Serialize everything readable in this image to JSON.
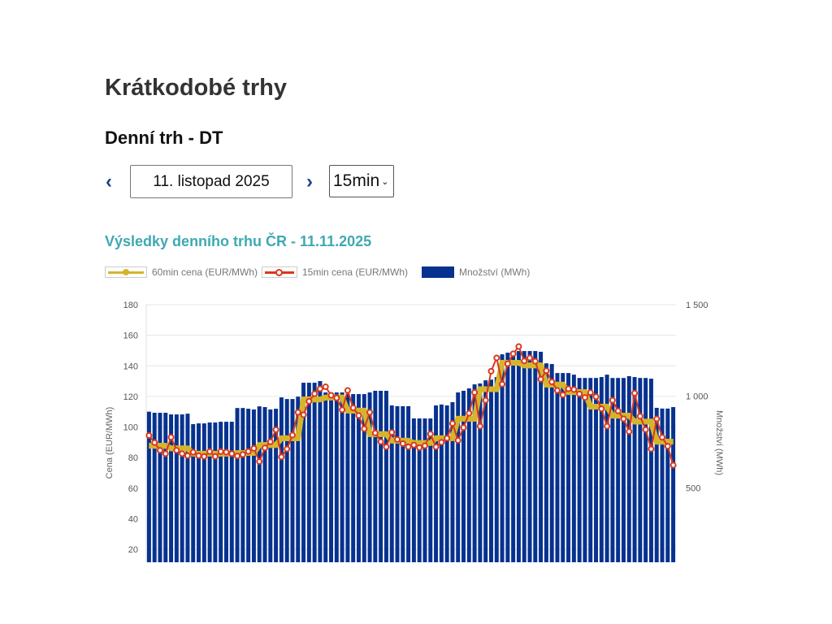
{
  "header": {
    "title": "Krátkodobé trhy",
    "subtitle": "Denní trh - DT"
  },
  "controls": {
    "prev_icon": "chevron-left-icon",
    "next_icon": "chevron-right-icon",
    "prev": "‹",
    "next": "›",
    "date": "11. listopad 2025",
    "interval": "15min"
  },
  "chart_data": {
    "type": "bar",
    "title": "Výsledky denního trhu ČR - 11.11.2025",
    "ylabel": "Cena (EUR/MWh)",
    "y2label": "Množství (MWh)",
    "ylim": [
      11.5,
      180
    ],
    "y2lim": [
      94,
      1500
    ],
    "yticks": [
      "20",
      "40",
      "60",
      "80",
      "100",
      "120",
      "140",
      "160",
      "180"
    ],
    "y2ticks": [
      "500",
      "1 000",
      "1 500"
    ],
    "grid": true,
    "legend_position": "top-left",
    "legend": [
      "60min cena (EUR/MWh)",
      "15min cena (EUR/MWh)",
      "Množství (MWh)"
    ],
    "colors": {
      "price60": "#d6b42c",
      "price15": "#d9381e",
      "quantity": "#06328f"
    },
    "series": [
      {
        "name": "60min cena (EUR/MWh)",
        "type": "line",
        "values": [
          87.7,
          86,
          82.5,
          82.5,
          83,
          88.2,
          92.6,
          118,
          119.3,
          110.7,
          95.3,
          91,
          89.5,
          92.6,
          105.4,
          124.7,
          142,
          140.3,
          127.7,
          122.8,
          113.3,
          107.4,
          103.5,
          90.4
        ]
      },
      {
        "name": "15min cena (EUR/MWh)",
        "type": "line",
        "values": [
          94.4,
          89.8,
          84.7,
          82.5,
          93.3,
          84.7,
          82.5,
          81.2,
          83.5,
          81.2,
          80.7,
          83.9,
          80.7,
          83.9,
          83.5,
          82.5,
          81,
          82,
          84,
          86,
          77.4,
          86.3,
          90.3,
          98.2,
          80.4,
          85.6,
          94.7,
          109.6,
          108,
          116.8,
          121.7,
          125,
          126.3,
          120.7,
          119,
          111.2,
          123.9,
          112.5,
          107.5,
          98.8,
          109.6,
          96.1,
          90.4,
          87,
          96.5,
          91.8,
          89.1,
          87,
          88.2,
          86.5,
          87.7,
          95.4,
          87,
          90,
          92.6,
          102.3,
          91.2,
          99.6,
          109,
          122.6,
          100.5,
          117.5,
          136.5,
          145.2,
          128,
          141.4,
          147.9,
          152.6,
          143.2,
          145.2,
          143,
          131.2,
          136.8,
          129.5,
          123.9,
          121,
          125,
          124.5,
          121.6,
          119.3,
          122.5,
          119.8,
          111.9,
          100.5,
          117.5,
          110.5,
          105.3,
          97,
          122.1,
          107,
          98.3,
          85.6,
          105.3,
          93.2,
          87.4,
          75
        ]
      },
      {
        "name": "Množství (MWh)",
        "type": "bar",
        "axis": "right",
        "values": [
          916,
          910,
          910,
          910,
          901,
          901,
          901,
          905,
          848,
          852,
          852,
          857,
          857,
          861,
          861,
          861,
          936,
          936,
          932,
          928,
          945,
          941,
          928,
          932,
          994,
          985,
          985,
          998,
          1074,
          1074,
          1074,
          1083,
          1021,
          1021,
          1021,
          1021,
          1012,
          1012,
          1012,
          1012,
          1021,
          1030,
          1030,
          1030,
          950,
          946,
          946,
          946,
          879,
          879,
          879,
          879,
          950,
          955,
          950,
          968,
          1021,
          1030,
          1043,
          1065,
          1070,
          1087,
          1091,
          1105,
          1229,
          1238,
          1243,
          1247,
          1247,
          1247,
          1247,
          1243,
          1180,
          1176,
          1127,
          1127,
          1127,
          1118,
          1100,
          1100,
          1100,
          1100,
          1105,
          1118,
          1100,
          1100,
          1100,
          1110,
          1105,
          1100,
          1100,
          1096,
          937,
          933,
          933,
          941
        ]
      }
    ]
  }
}
